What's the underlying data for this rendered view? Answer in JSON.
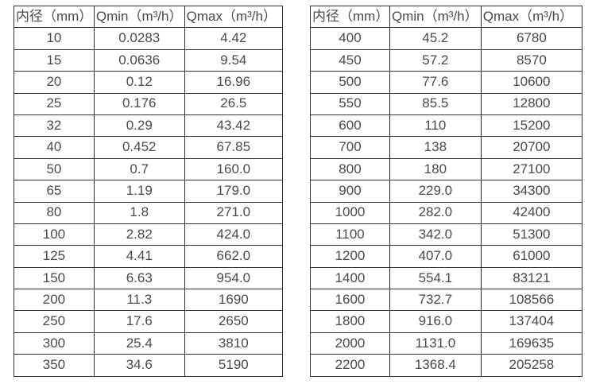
{
  "tables": [
    {
      "name": "flow-spec-small-diameters",
      "headers": [
        "内径（mm）",
        "Qmin（m³/h）",
        "Qmax（m³/h）"
      ],
      "rows": [
        [
          "10",
          "0.0283",
          "4.42"
        ],
        [
          "15",
          "0.0636",
          "9.54"
        ],
        [
          "20",
          "0.12",
          "16.96"
        ],
        [
          "25",
          "0.176",
          "26.5"
        ],
        [
          "32",
          "0.29",
          "43.42"
        ],
        [
          "40",
          "0.452",
          "67.85"
        ],
        [
          "50",
          "0.7",
          "160.0"
        ],
        [
          "65",
          "1.19",
          "179.0"
        ],
        [
          "80",
          "1.8",
          "271.0"
        ],
        [
          "100",
          "2.82",
          "424.0"
        ],
        [
          "125",
          "4.41",
          "662.0"
        ],
        [
          "150",
          "6.63",
          "954.0"
        ],
        [
          "200",
          "11.3",
          "1690"
        ],
        [
          "250",
          "17.6",
          "2650"
        ],
        [
          "300",
          "25.4",
          "3810"
        ],
        [
          "350",
          "34.6",
          "5190"
        ]
      ]
    },
    {
      "name": "flow-spec-large-diameters",
      "headers": [
        "内径（mm）",
        "Qmin（m³/h）",
        "Qmax（m³/h）"
      ],
      "rows": [
        [
          "400",
          "45.2",
          "6780"
        ],
        [
          "450",
          "57.2",
          "8570"
        ],
        [
          "500",
          "77.6",
          "10600"
        ],
        [
          "550",
          "85.5",
          "12800"
        ],
        [
          "600",
          "110",
          "15200"
        ],
        [
          "700",
          "138",
          "20700"
        ],
        [
          "800",
          "180",
          "27100"
        ],
        [
          "900",
          "229.0",
          "34300"
        ],
        [
          "1000",
          "282.0",
          "42400"
        ],
        [
          "1100",
          "342.0",
          "51300"
        ],
        [
          "1200",
          "407.0",
          "61000"
        ],
        [
          "1400",
          "554.1",
          "83121"
        ],
        [
          "1600",
          "732.7",
          "108566"
        ],
        [
          "1800",
          "916.0",
          "137404"
        ],
        [
          "2000",
          "1131.0",
          "169635"
        ],
        [
          "2200",
          "1368.4",
          "205258"
        ]
      ]
    }
  ],
  "style": {
    "border_color": "#333333",
    "text_color": "#4a4a4a",
    "background_color": "#ffffff"
  }
}
